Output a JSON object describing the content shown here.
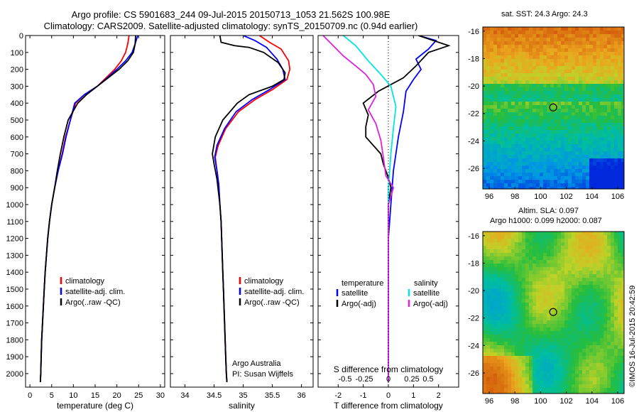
{
  "header": {
    "title_line1": "Argo profile: CS 5901683_244 09-Jul-2015 20150713_1053 21.562S 100.98E",
    "title_line2": "Climatology: CARS2009. Satellite-adjusted climatology: synTS_20150709.nc (0.94d earlier)"
  },
  "timestamp": "©IMOS 16-Jul-2015 20:42:59",
  "credit": {
    "line1": "Argo Australia",
    "line2": "PI: Susan Wijffels"
  },
  "colors": {
    "climatology": "#ff0000",
    "satellite": "#0000ff",
    "argo": "#000000",
    "sal_sat": "#00e5e5",
    "sal_argo": "#e020e0"
  },
  "chart_data": [
    {
      "id": "temperature",
      "type": "line",
      "xlabel": "temperature (deg C)",
      "ylabel": "",
      "xlim": [
        -1,
        31
      ],
      "ylim": [
        2080,
        0
      ],
      "xticks": [
        0,
        5,
        10,
        15,
        20,
        25,
        30
      ],
      "yticks": [
        0,
        100,
        200,
        300,
        400,
        500,
        600,
        700,
        800,
        900,
        1000,
        1100,
        1200,
        1300,
        1400,
        1500,
        1600,
        1700,
        1800,
        1900,
        2000
      ],
      "legend": [
        "climatology",
        "satellite-adj. clim.",
        "Argo(..raw -QC)"
      ],
      "legend_position": "lower-right",
      "series": [
        {
          "name": "climatology",
          "color": "#ff0000",
          "points": [
            [
              22.8,
              0
            ],
            [
              22.5,
              50
            ],
            [
              22,
              100
            ],
            [
              21,
              150
            ],
            [
              19.5,
              200
            ],
            [
              17.5,
              250
            ],
            [
              15.5,
              300
            ],
            [
              12.5,
              350
            ],
            [
              10.5,
              400
            ],
            [
              9.3,
              500
            ],
            [
              8.2,
              600
            ],
            [
              7.4,
              700
            ],
            [
              6.5,
              800
            ],
            [
              5.7,
              900
            ],
            [
              5,
              1000
            ],
            [
              4.5,
              1100
            ],
            [
              4.1,
              1200
            ],
            [
              3.8,
              1300
            ],
            [
              3.5,
              1400
            ],
            [
              3.3,
              1500
            ],
            [
              3.1,
              1600
            ],
            [
              2.9,
              1700
            ],
            [
              2.7,
              1800
            ],
            [
              2.6,
              1900
            ],
            [
              2.5,
              2000
            ],
            [
              2.4,
              2050
            ]
          ]
        },
        {
          "name": "satellite-adj. clim.",
          "color": "#0000ff",
          "points": [
            [
              24.8,
              0
            ],
            [
              24.2,
              50
            ],
            [
              23.5,
              100
            ],
            [
              22,
              150
            ],
            [
              20,
              200
            ],
            [
              17.8,
              250
            ],
            [
              15.5,
              300
            ],
            [
              12.5,
              350
            ],
            [
              10.3,
              400
            ],
            [
              9.3,
              500
            ],
            [
              8.3,
              600
            ],
            [
              7.5,
              700
            ],
            [
              6.5,
              800
            ],
            [
              5.7,
              900
            ],
            [
              5,
              1000
            ],
            [
              4.5,
              1100
            ],
            [
              4.1,
              1200
            ],
            [
              3.8,
              1300
            ],
            [
              3.5,
              1400
            ],
            [
              3.3,
              1500
            ],
            [
              3.1,
              1600
            ],
            [
              2.9,
              1700
            ],
            [
              2.7,
              1800
            ],
            [
              2.6,
              1900
            ],
            [
              2.5,
              2000
            ],
            [
              2.4,
              2050
            ]
          ]
        },
        {
          "name": "Argo(..raw -QC)",
          "color": "#000000",
          "points": [
            [
              24.3,
              0
            ],
            [
              24.2,
              50
            ],
            [
              23.8,
              100
            ],
            [
              22.5,
              150
            ],
            [
              20.5,
              200
            ],
            [
              18,
              250
            ],
            [
              15.5,
              300
            ],
            [
              13,
              350
            ],
            [
              11,
              400
            ],
            [
              8.8,
              500
            ],
            [
              7.8,
              600
            ],
            [
              7,
              700
            ],
            [
              6.3,
              800
            ],
            [
              5.7,
              900
            ],
            [
              5,
              1000
            ],
            [
              4.5,
              1100
            ],
            [
              4.1,
              1200
            ],
            [
              3.8,
              1300
            ],
            [
              3.5,
              1400
            ],
            [
              3.3,
              1500
            ],
            [
              3.1,
              1600
            ],
            [
              2.9,
              1700
            ],
            [
              2.7,
              1800
            ],
            [
              2.6,
              1900
            ],
            [
              2.5,
              2000
            ],
            [
              2.4,
              2050
            ]
          ]
        }
      ]
    },
    {
      "id": "salinity",
      "type": "line",
      "xlabel": "salinity",
      "ylabel": "",
      "xlim": [
        33.75,
        36.2
      ],
      "ylim": [
        2080,
        0
      ],
      "xticks": [
        34,
        34.5,
        35,
        35.5,
        36
      ],
      "legend": [
        "climatology",
        "satellite-adj. clim.",
        "Argo(..raw -QC)"
      ],
      "legend_position": "lower-right",
      "series": [
        {
          "name": "climatology",
          "color": "#ff0000",
          "points": [
            [
              35.28,
              0
            ],
            [
              35.45,
              40
            ],
            [
              35.65,
              80
            ],
            [
              35.78,
              150
            ],
            [
              35.8,
              200
            ],
            [
              35.75,
              260
            ],
            [
              35.5,
              320
            ],
            [
              35.2,
              380
            ],
            [
              34.92,
              450
            ],
            [
              34.7,
              550
            ],
            [
              34.57,
              650
            ],
            [
              34.52,
              720
            ],
            [
              34.55,
              800
            ],
            [
              34.58,
              880
            ],
            [
              34.6,
              1000
            ],
            [
              34.62,
              1100
            ],
            [
              34.63,
              1200
            ],
            [
              34.64,
              1300
            ],
            [
              34.65,
              1400
            ],
            [
              34.66,
              1500
            ],
            [
              34.67,
              1600
            ],
            [
              34.68,
              1700
            ],
            [
              34.69,
              1800
            ],
            [
              34.7,
              1900
            ],
            [
              34.71,
              2000
            ],
            [
              34.72,
              2050
            ]
          ]
        },
        {
          "name": "satellite-adj. clim.",
          "color": "#0000ff",
          "points": [
            [
              35,
              0
            ],
            [
              35.2,
              30
            ],
            [
              35.4,
              70
            ],
            [
              35.58,
              140
            ],
            [
              35.68,
              200
            ],
            [
              35.72,
              260
            ],
            [
              35.45,
              320
            ],
            [
              35.15,
              380
            ],
            [
              34.88,
              450
            ],
            [
              34.68,
              550
            ],
            [
              34.55,
              650
            ],
            [
              34.51,
              720
            ],
            [
              34.55,
              800
            ],
            [
              34.58,
              880
            ],
            [
              34.6,
              1000
            ],
            [
              34.62,
              1100
            ],
            [
              34.63,
              1200
            ],
            [
              34.64,
              1300
            ],
            [
              34.65,
              1400
            ],
            [
              34.66,
              1500
            ],
            [
              34.67,
              1600
            ],
            [
              34.68,
              1700
            ],
            [
              34.69,
              1800
            ],
            [
              34.7,
              1900
            ],
            [
              34.71,
              2000
            ],
            [
              34.72,
              2050
            ]
          ]
        },
        {
          "name": "Argo(..raw -QC)",
          "color": "#000000",
          "points": [
            [
              34.6,
              0
            ],
            [
              34.62,
              40
            ],
            [
              34.85,
              60
            ],
            [
              35.1,
              70
            ],
            [
              35.35,
              100
            ],
            [
              35.6,
              160
            ],
            [
              35.72,
              220
            ],
            [
              35.7,
              260
            ],
            [
              35.5,
              300
            ],
            [
              35.1,
              350
            ],
            [
              34.9,
              400
            ],
            [
              34.65,
              500
            ],
            [
              34.52,
              600
            ],
            [
              34.47,
              700
            ],
            [
              34.5,
              760
            ],
            [
              34.55,
              850
            ],
            [
              34.6,
              1000
            ],
            [
              34.62,
              1100
            ],
            [
              34.63,
              1200
            ],
            [
              34.64,
              1300
            ],
            [
              34.65,
              1400
            ],
            [
              34.66,
              1500
            ],
            [
              34.67,
              1600
            ],
            [
              34.68,
              1700
            ],
            [
              34.69,
              1800
            ],
            [
              34.7,
              1900
            ],
            [
              34.71,
              2000
            ],
            [
              34.72,
              2050
            ]
          ]
        }
      ]
    },
    {
      "id": "difference",
      "type": "line",
      "xlabel": "T difference from climatology",
      "xlabel_top": "S difference from climatology",
      "ylabel": "",
      "xlim": [
        -2.8,
        2.8
      ],
      "ylim": [
        2080,
        0
      ],
      "xticks_T": [
        -2,
        -1,
        0,
        1,
        2
      ],
      "xticks_S": [
        -0.5,
        -0.25,
        0,
        0.25,
        0.5
      ],
      "legend_temperature": {
        "heading": "temperature",
        "items": [
          "satellite",
          "Argo(-adj)"
        ]
      },
      "legend_salinity": {
        "heading": "salinity",
        "items": [
          "satellite",
          "Argo(-adj)"
        ]
      },
      "legend_position": "lower-center",
      "series": [
        {
          "name": "T satellite",
          "color": "#0000ff",
          "points": [
            [
              1.2,
              0
            ],
            [
              1.9,
              30
            ],
            [
              1.6,
              80
            ],
            [
              1.1,
              140
            ],
            [
              1.3,
              200
            ],
            [
              1,
              260
            ],
            [
              0.7,
              330
            ],
            [
              0.6,
              450
            ],
            [
              0.4,
              600
            ],
            [
              0.3,
              700
            ],
            [
              0.2,
              800
            ],
            [
              0.1,
              1000
            ],
            [
              0,
              1200
            ],
            [
              0,
              2050
            ]
          ]
        },
        {
          "name": "T Argo(-adj)",
          "color": "#000000",
          "points": [
            [
              1.2,
              0
            ],
            [
              2.4,
              60
            ],
            [
              1.6,
              100
            ],
            [
              1.1,
              180
            ],
            [
              0.6,
              250
            ],
            [
              -0.4,
              330
            ],
            [
              -1,
              400
            ],
            [
              -0.8,
              470
            ],
            [
              -0.9,
              540
            ],
            [
              -0.9,
              600
            ],
            [
              -0.3,
              700
            ],
            [
              -0.2,
              760
            ],
            [
              0,
              840
            ],
            [
              0.1,
              900
            ],
            [
              0,
              1000
            ],
            [
              0,
              2050
            ]
          ]
        },
        {
          "name": "S satellite",
          "color": "#00e5e5",
          "points": [
            [
              -1.8,
              0
            ],
            [
              -1.3,
              60
            ],
            [
              -0.8,
              150
            ],
            [
              -0.3,
              230
            ],
            [
              0.1,
              300
            ],
            [
              0.3,
              420
            ],
            [
              0.2,
              550
            ],
            [
              0.1,
              700
            ],
            [
              0,
              900
            ],
            [
              0,
              1200
            ],
            [
              0,
              2050
            ]
          ]
        },
        {
          "name": "S Argo(-adj)",
          "color": "#e020e0",
          "points": [
            [
              -2.6,
              0
            ],
            [
              -2.2,
              60
            ],
            [
              -1.8,
              120
            ],
            [
              -1.3,
              180
            ],
            [
              -0.9,
              230
            ],
            [
              -0.6,
              290
            ],
            [
              -0.5,
              360
            ],
            [
              -0.8,
              440
            ],
            [
              -0.5,
              520
            ],
            [
              -0.3,
              620
            ],
            [
              -0.2,
              720
            ],
            [
              -0.1,
              830
            ],
            [
              0.2,
              900
            ],
            [
              0,
              1000
            ],
            [
              0,
              2050
            ]
          ]
        }
      ]
    },
    {
      "id": "sst_map",
      "type": "heatmap",
      "title": "sat. SST: 24.3 Argo: 24.3",
      "xlim": [
        95.5,
        106.5
      ],
      "ylim": [
        -27.5,
        -15.7
      ],
      "xticks": [
        96,
        98,
        100,
        102,
        104,
        106
      ],
      "yticks": [
        -16,
        -18,
        -20,
        -22,
        -24,
        -26
      ],
      "marker": {
        "lon": 100.98,
        "lat": -21.56
      }
    },
    {
      "id": "sla_map",
      "type": "heatmap",
      "title": "Altim. SLA: 0.097",
      "subtitle": "Argo h1000: 0.099 h2000: 0.087",
      "xlim": [
        95.5,
        106.5
      ],
      "ylim": [
        -27.5,
        -15.7
      ],
      "xticks": [
        96,
        98,
        100,
        102,
        104,
        106
      ],
      "yticks": [
        -16,
        -18,
        -20,
        -22,
        -24,
        -26
      ],
      "marker": {
        "lon": 100.98,
        "lat": -21.56
      }
    }
  ]
}
